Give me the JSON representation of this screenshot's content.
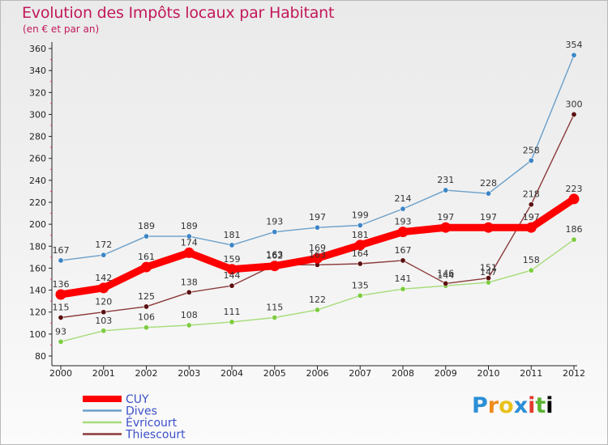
{
  "header": {
    "title": "Evolution des Impôts locaux par Habitant",
    "subtitle": "(en € et par an)"
  },
  "logo": {
    "text": "Proxiti"
  },
  "chart_data": {
    "type": "line",
    "title": "Evolution des Impôts locaux par Habitant",
    "subtitle": "(en € et par an)",
    "xlabel": "",
    "ylabel": "",
    "ylim": [
      80,
      360
    ],
    "ytick_step": 20,
    "grid": false,
    "legend_position": "bottom-left",
    "categories": [
      "2000",
      "2001",
      "2002",
      "2003",
      "2004",
      "2005",
      "2006",
      "2007",
      "2008",
      "2009",
      "2010",
      "2011",
      "2012"
    ],
    "series": [
      {
        "name": "CUY",
        "color": "#ff0000",
        "marker_color": "#ff0000",
        "emphasis": true,
        "values": [
          136,
          142,
          161,
          174,
          159,
          162,
          169,
          181,
          193,
          197,
          197,
          197,
          223
        ]
      },
      {
        "name": "Dives",
        "color": "#6a9fc9",
        "marker_color": "#3d85c6",
        "emphasis": false,
        "values": [
          167,
          172,
          189,
          189,
          181,
          193,
          197,
          199,
          214,
          231,
          228,
          258,
          354
        ]
      },
      {
        "name": "Évricourt",
        "color": "#a6dc78",
        "marker_color": "#7dcc3f",
        "emphasis": false,
        "values": [
          93,
          103,
          106,
          108,
          111,
          115,
          122,
          135,
          141,
          144,
          147,
          158,
          186
        ]
      },
      {
        "name": "Thiescourt",
        "color": "#8b3a3a",
        "marker_color": "#5c1010",
        "emphasis": false,
        "values": [
          115,
          120,
          125,
          138,
          144,
          163,
          163,
          164,
          167,
          146,
          151,
          218,
          300
        ]
      }
    ]
  }
}
